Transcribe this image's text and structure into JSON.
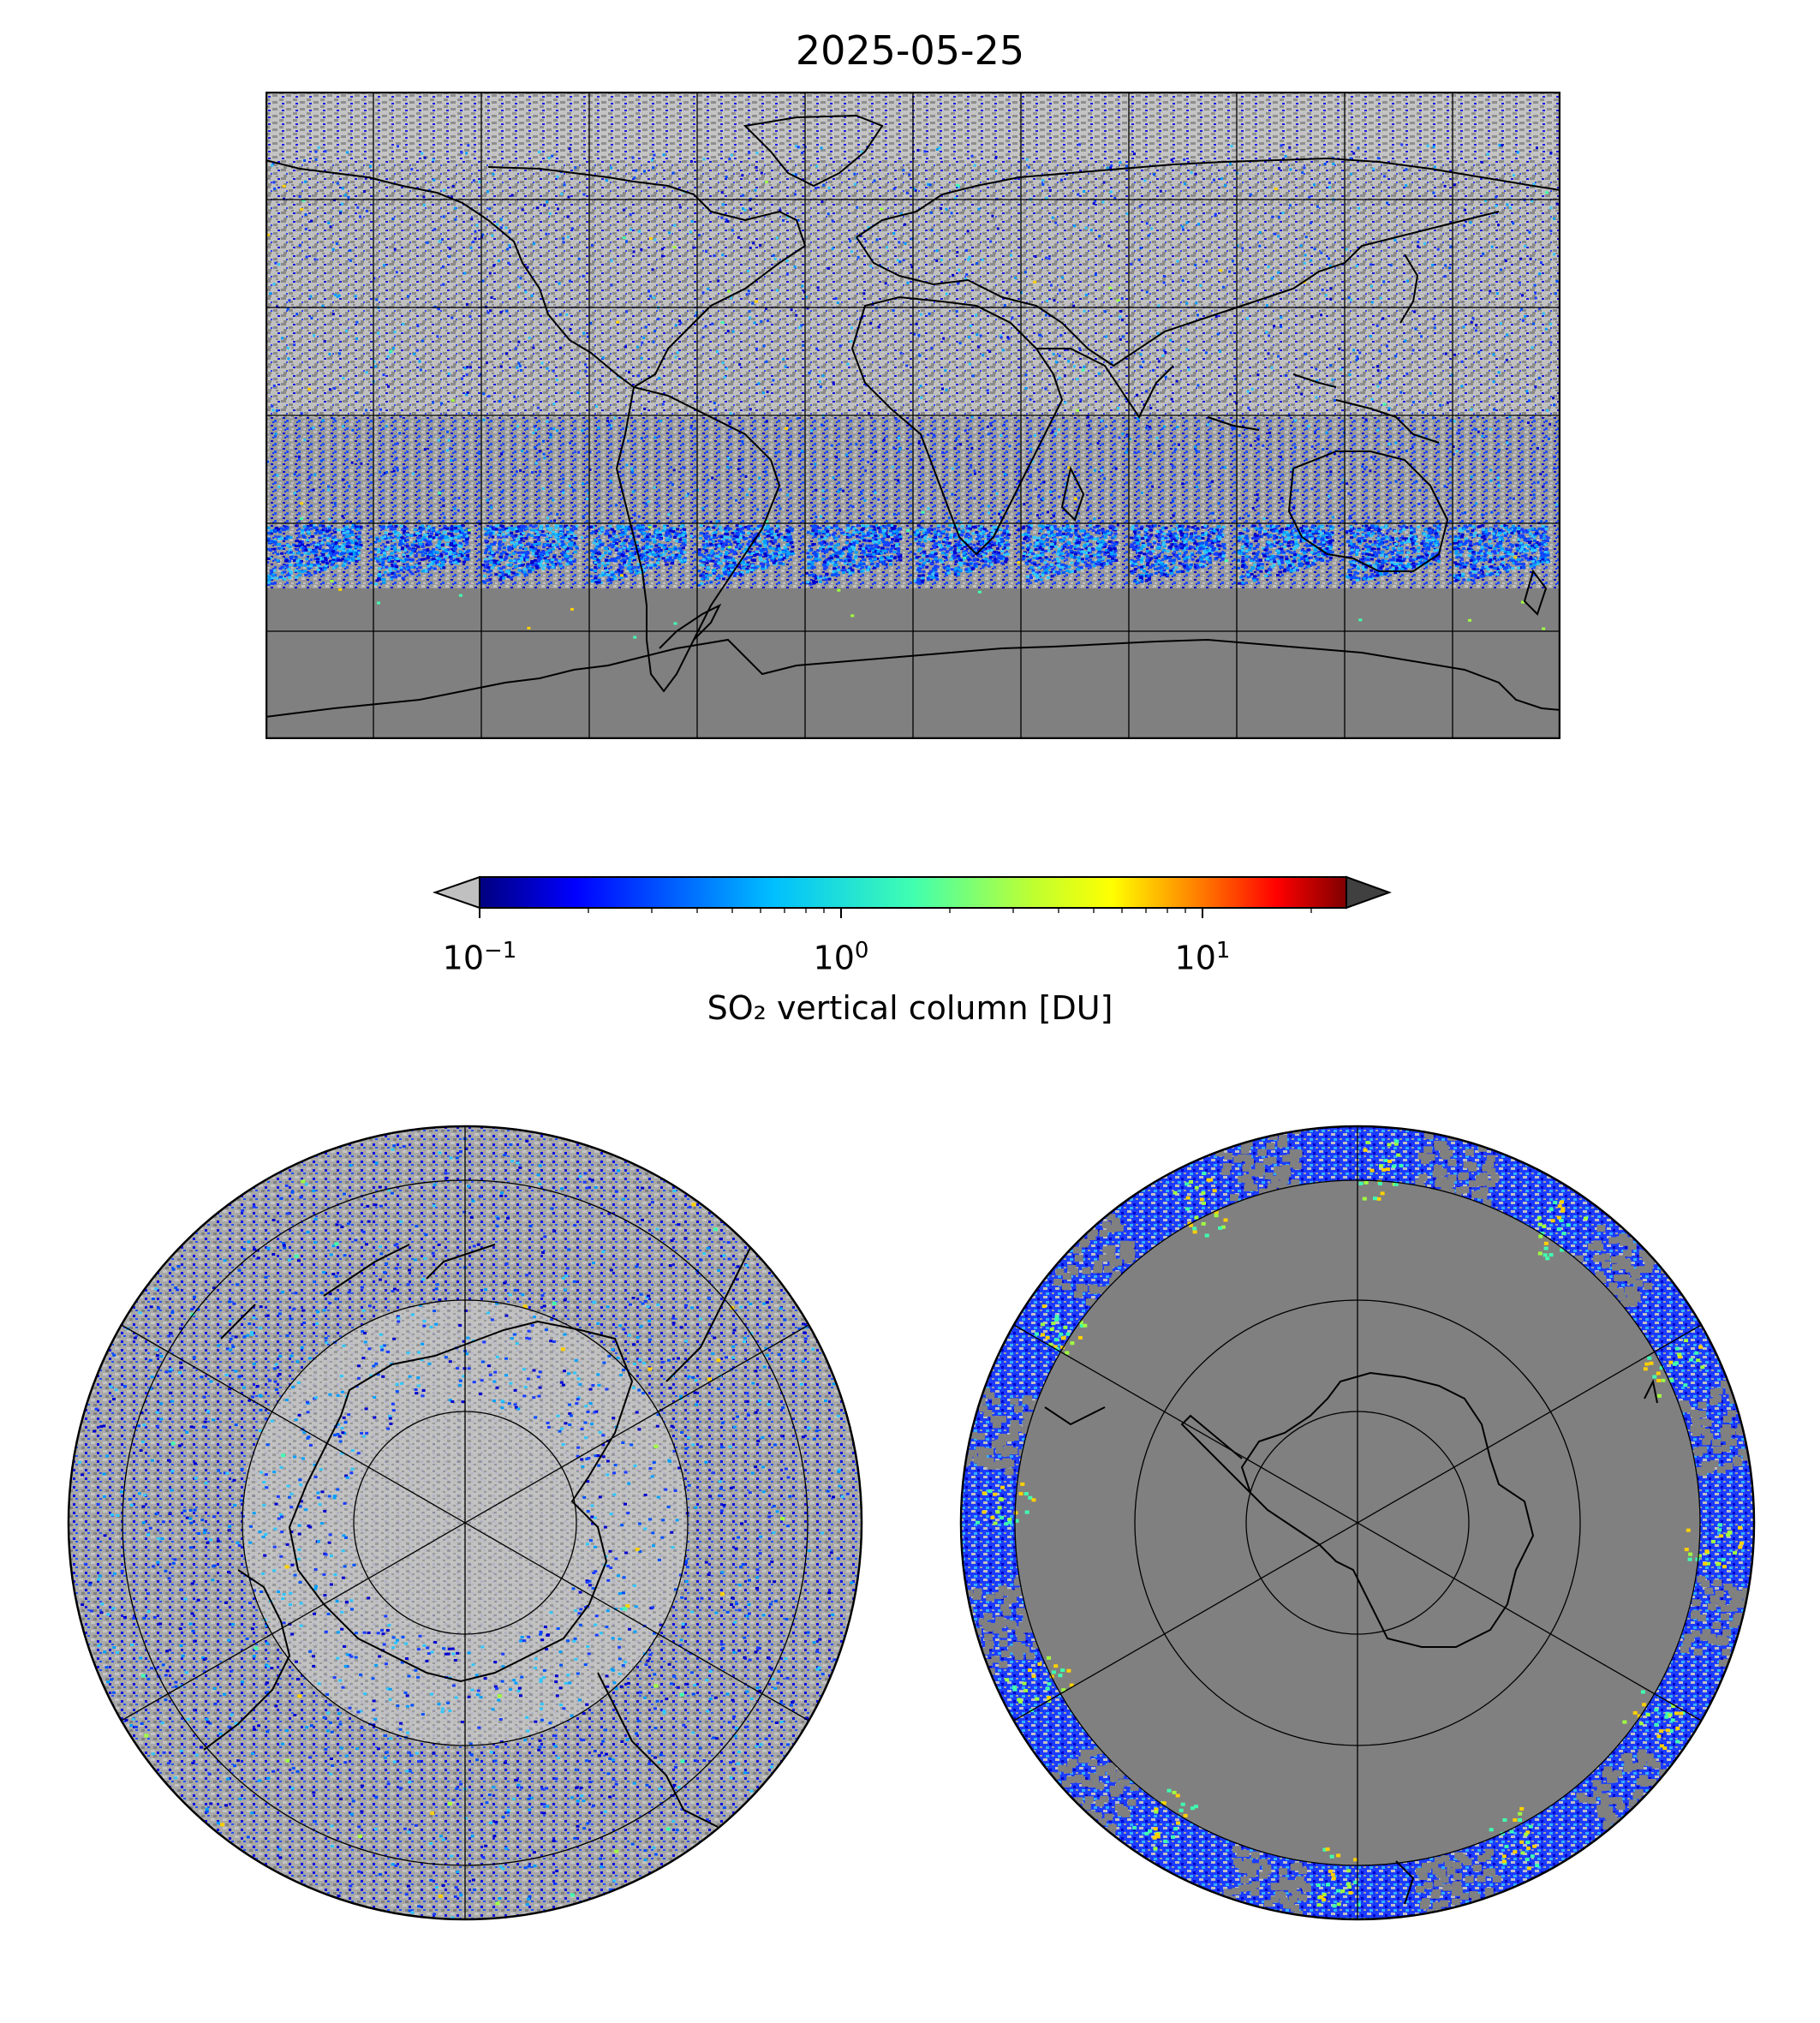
{
  "title": "2025-05-25",
  "colorbar": {
    "label": "SO₂ vertical column [DU]",
    "scale": "log",
    "range": [
      0.1,
      25
    ],
    "colormap": "jet",
    "extend_low_color": "#c0c0c0",
    "extend_high_color": "#404040",
    "ticks": [
      {
        "base": "10",
        "exp": "−1",
        "value": 0.1
      },
      {
        "base": "10",
        "exp": "0",
        "value": 1
      },
      {
        "base": "10",
        "exp": "1",
        "value": 10
      }
    ]
  },
  "maps": [
    {
      "kind": "equirectangular",
      "extent_lon": [
        -180,
        180
      ],
      "extent_lat": [
        -90,
        90
      ],
      "grid_lon_step": 30,
      "grid_lat_step": 30
    },
    {
      "kind": "north-polar-stereographic",
      "boundary_lat": 0,
      "grid_lat": [
        30,
        60
      ]
    },
    {
      "kind": "south-polar-stereographic",
      "boundary_lat": 0,
      "grid_lat": [
        -30,
        -60
      ]
    }
  ],
  "colors": {
    "ocean_noise_light": "#c0c0c0",
    "ocean_noise_dark": "#8a8a8a",
    "no_data": "#808080",
    "coast": "#000000",
    "low_so2": "#0000dd",
    "mid_so2": "#00b4ff",
    "high_so2": "#ffd700"
  }
}
